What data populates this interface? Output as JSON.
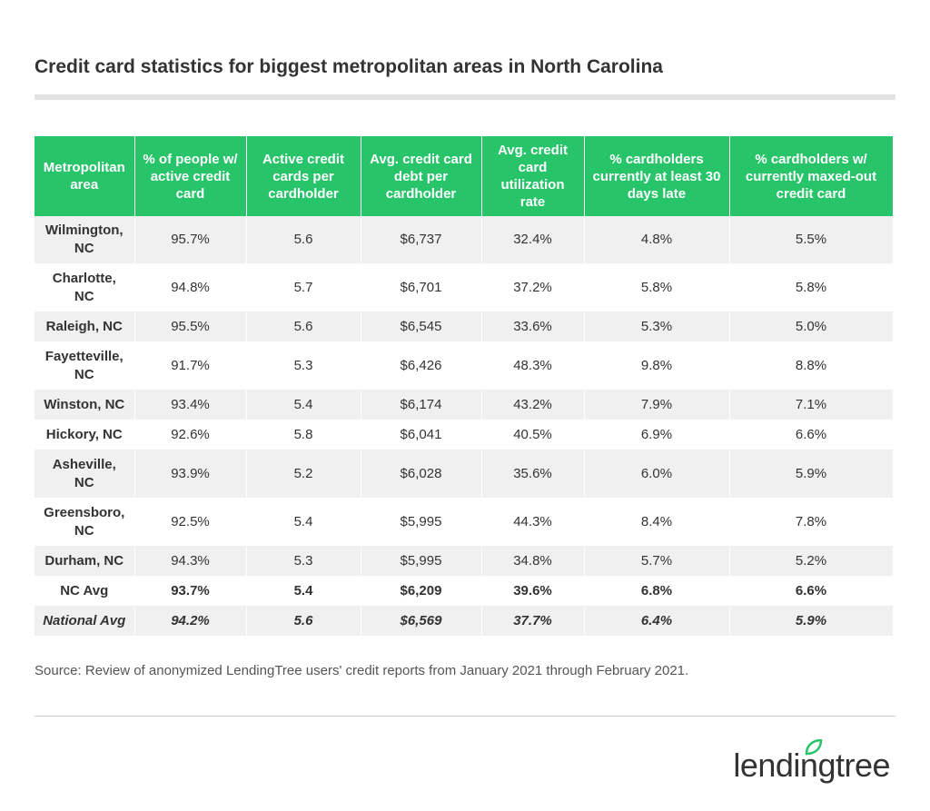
{
  "title": "Credit card statistics for biggest metropolitan areas in North Carolina",
  "table": {
    "header": [
      "Metropolitan area",
      "% of people w/ active credit card",
      "Active credit cards per cardholder",
      "Avg. credit card debt per cardholder",
      "Avg. credit card utilization rate",
      "% cardholders currently at least 30 days late",
      "% cardholders w/ currently maxed-out credit card"
    ],
    "rows": [
      [
        "Wilmington, NC",
        "95.7%",
        "5.6",
        "$6,737",
        "32.4%",
        "4.8%",
        "5.5%"
      ],
      [
        "Charlotte, NC",
        "94.8%",
        "5.7",
        "$6,701",
        "37.2%",
        "5.8%",
        "5.8%"
      ],
      [
        "Raleigh, NC",
        "95.5%",
        "5.6",
        "$6,545",
        "33.6%",
        "5.3%",
        "5.0%"
      ],
      [
        "Fayetteville, NC",
        "91.7%",
        "5.3",
        "$6,426",
        "48.3%",
        "9.8%",
        "8.8%"
      ],
      [
        "Winston, NC",
        "93.4%",
        "5.4",
        "$6,174",
        "43.2%",
        "7.9%",
        "7.1%"
      ],
      [
        "Hickory, NC",
        "92.6%",
        "5.8",
        "$6,041",
        "40.5%",
        "6.9%",
        "6.6%"
      ],
      [
        "Asheville, NC",
        "93.9%",
        "5.2",
        "$6,028",
        "35.6%",
        "6.0%",
        "5.9%"
      ],
      [
        "Greensboro, NC",
        "92.5%",
        "5.4",
        "$5,995",
        "44.3%",
        "8.4%",
        "7.8%"
      ],
      [
        "Durham, NC",
        "94.3%",
        "5.3",
        "$5,995",
        "34.8%",
        "5.7%",
        "5.2%"
      ],
      [
        "NC Avg",
        "93.7%",
        "5.4",
        "$6,209",
        "39.6%",
        "6.8%",
        "6.6%"
      ],
      [
        "National Avg",
        "94.2%",
        "5.6",
        "$6,569",
        "37.7%",
        "6.4%",
        "5.9%"
      ]
    ]
  },
  "source": "Source: Review of anonymized LendingTree users' credit reports from January 2021 through February 2021.",
  "logo": "lendingtree"
}
